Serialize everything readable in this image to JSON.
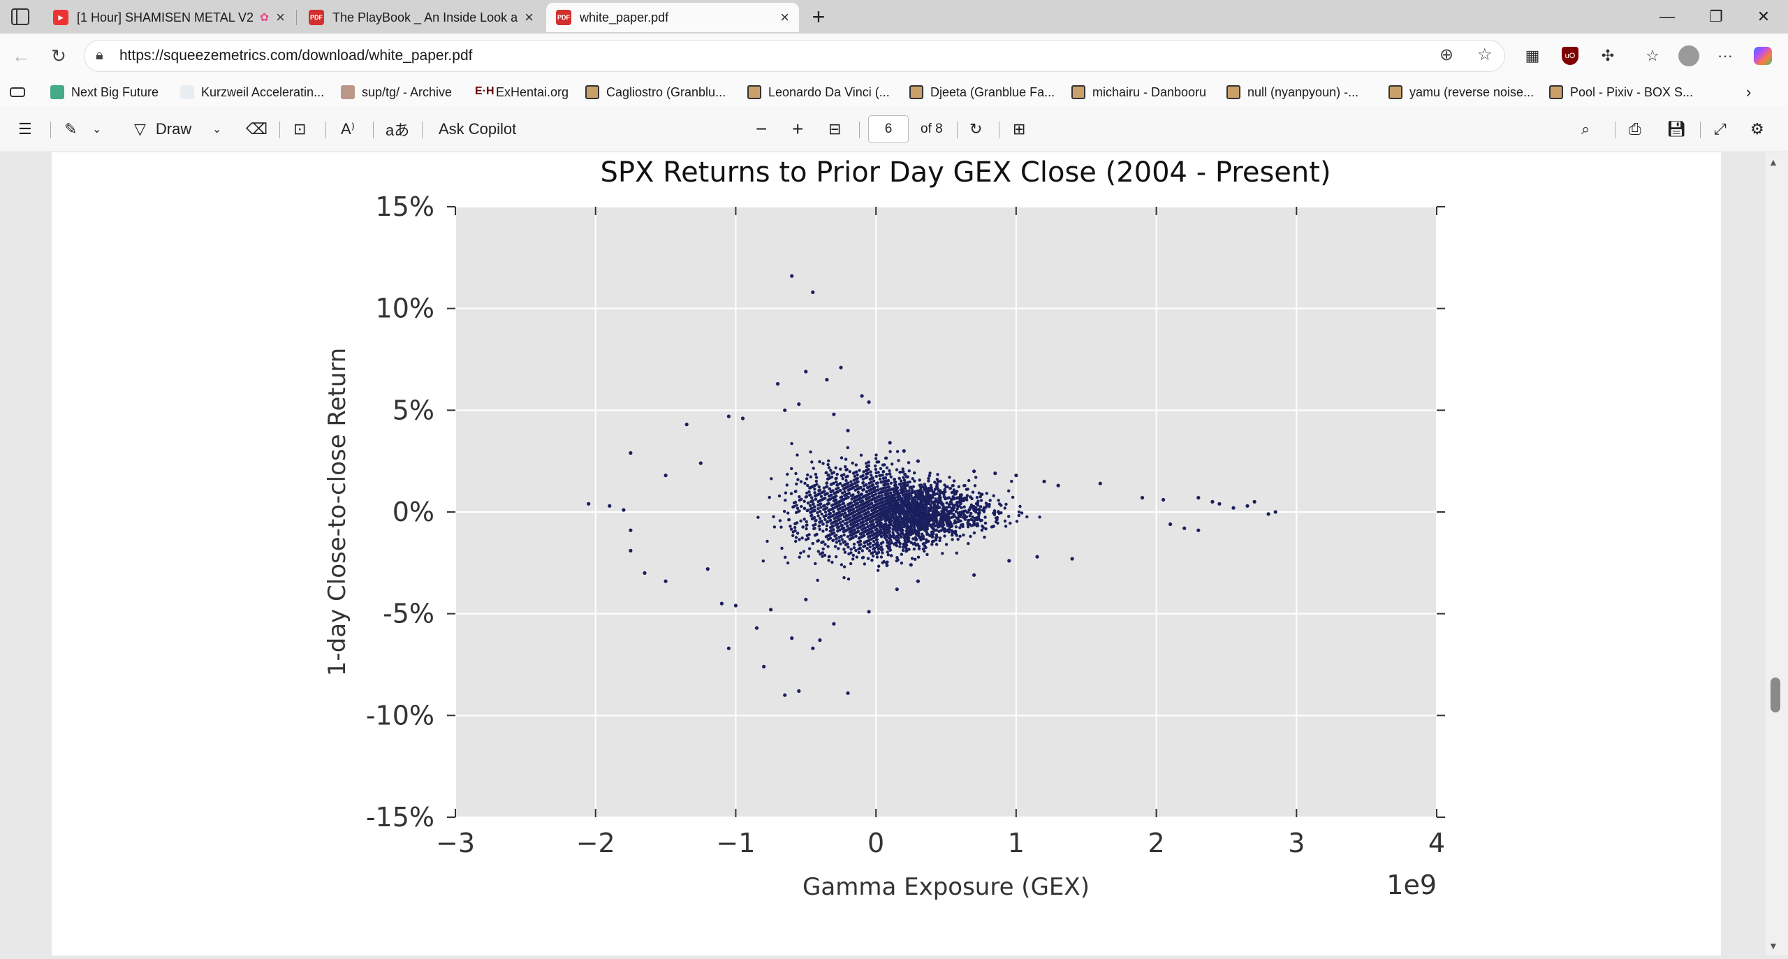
{
  "browser": {
    "tabs": [
      {
        "title": "[1 Hour] SHAMISEN METAL V2",
        "favicon": "youtube-icon",
        "active": false
      },
      {
        "title": "The PlayBook _ An Inside Look at",
        "favicon": "pdf-icon",
        "active": false
      },
      {
        "title": "white_paper.pdf",
        "favicon": "pdf-icon",
        "active": true
      }
    ],
    "new_tab_label": "+",
    "url": "https://squeezemetrics.com/download/white_paper.pdf"
  },
  "bookmarks": [
    {
      "label": "Next Big Future",
      "icon": "nbf-icon"
    },
    {
      "label": "Kurzweil Acceleratin...",
      "icon": "page-icon"
    },
    {
      "label": "sup/tg/ - Archive",
      "icon": "archive-icon"
    },
    {
      "label": "ExHentai.org",
      "icon": "eh-icon"
    },
    {
      "label": "Cagliostro (Granblu...",
      "icon": "folder-icon"
    },
    {
      "label": "Leonardo Da Vinci (...",
      "icon": "folder-icon"
    },
    {
      "label": "Djeeta (Granblue Fa...",
      "icon": "folder-icon"
    },
    {
      "label": "michairu - Danbooru",
      "icon": "folder-icon"
    },
    {
      "label": "null (nyanpyoun) -...",
      "icon": "folder-icon"
    },
    {
      "label": "yamu (reverse noise...",
      "icon": "folder-icon"
    },
    {
      "label": "Pool - Pixiv - BOX S...",
      "icon": "folder-icon"
    }
  ],
  "pdf_toolbar": {
    "draw_label": "Draw",
    "ask_copilot_label": "Ask Copilot",
    "current_page": "6",
    "page_count_label": "of 8"
  },
  "chart_data": {
    "type": "scatter",
    "title": "SPX Returns to Prior Day GEX Close (2004 - Present)",
    "xlabel": "Gamma Exposure (GEX)",
    "ylabel": "1-day Close-to-close Return",
    "x_offset_label": "1e9",
    "xlim": [
      -3,
      4
    ],
    "ylim": [
      -15,
      15
    ],
    "x_ticks": [
      -3,
      -2,
      -1,
      0,
      1,
      2,
      3,
      4
    ],
    "x_tick_labels": [
      "−3",
      "−2",
      "−1",
      "0",
      "1",
      "2",
      "3",
      "4"
    ],
    "y_ticks": [
      15,
      10,
      5,
      0,
      -5,
      -10,
      -15
    ],
    "y_tick_labels": [
      "15%",
      "10%",
      "5%",
      "0%",
      "-5%",
      "-10%",
      "-15%"
    ],
    "grid": true,
    "marker_color": "#1a1f5e",
    "background_color": "#e5e5e5",
    "points": [
      [
        -0.6,
        11.6
      ],
      [
        -0.45,
        10.8
      ],
      [
        -0.25,
        7.1
      ],
      [
        -0.5,
        6.9
      ],
      [
        -0.7,
        6.3
      ],
      [
        -0.35,
        6.5
      ],
      [
        -0.55,
        5.3
      ],
      [
        -0.1,
        5.7
      ],
      [
        -0.05,
        5.4
      ],
      [
        -0.65,
        5.0
      ],
      [
        -1.05,
        4.7
      ],
      [
        -0.95,
        4.6
      ],
      [
        -1.35,
        4.3
      ],
      [
        -0.3,
        4.8
      ],
      [
        -1.75,
        2.9
      ],
      [
        -1.5,
        1.8
      ],
      [
        -1.25,
        2.4
      ],
      [
        -2.05,
        0.4
      ],
      [
        -1.9,
        0.3
      ],
      [
        -1.8,
        0.1
      ],
      [
        -1.75,
        -0.9
      ],
      [
        -1.75,
        -1.9
      ],
      [
        -1.65,
        -3.0
      ],
      [
        -1.5,
        -3.4
      ],
      [
        -1.2,
        -2.8
      ],
      [
        -1.1,
        -4.5
      ],
      [
        -1.0,
        -4.6
      ],
      [
        -1.05,
        -6.7
      ],
      [
        -0.85,
        -5.7
      ],
      [
        -0.8,
        -7.6
      ],
      [
        -0.65,
        -9.0
      ],
      [
        -0.55,
        -8.8
      ],
      [
        -0.2,
        -8.9
      ],
      [
        -0.45,
        -6.7
      ],
      [
        -0.4,
        -6.3
      ],
      [
        -0.6,
        -6.2
      ],
      [
        -0.3,
        -5.5
      ],
      [
        -0.05,
        -4.9
      ],
      [
        -0.75,
        -4.8
      ],
      [
        -0.5,
        -4.3
      ],
      [
        0.15,
        -3.8
      ],
      [
        0.3,
        -3.4
      ],
      [
        0.7,
        -3.1
      ],
      [
        0.25,
        -2.6
      ],
      [
        0.95,
        -2.4
      ],
      [
        1.4,
        -2.3
      ],
      [
        1.15,
        -2.2
      ],
      [
        2.2,
        -0.8
      ],
      [
        2.3,
        -0.9
      ],
      [
        2.1,
        -0.6
      ],
      [
        1.9,
        0.7
      ],
      [
        2.05,
        0.6
      ],
      [
        2.3,
        0.7
      ],
      [
        2.4,
        0.5
      ],
      [
        2.45,
        0.4
      ],
      [
        2.65,
        0.3
      ],
      [
        2.7,
        0.5
      ],
      [
        2.85,
        0.0
      ],
      [
        2.8,
        -0.1
      ],
      [
        2.55,
        0.2
      ],
      [
        1.6,
        1.4
      ],
      [
        1.3,
        1.3
      ],
      [
        1.2,
        1.5
      ],
      [
        1.0,
        1.8
      ],
      [
        0.7,
        2.0
      ],
      [
        0.85,
        1.9
      ],
      [
        0.3,
        2.5
      ],
      [
        0.2,
        3.0
      ],
      [
        0.1,
        3.4
      ],
      [
        -0.2,
        4.0
      ]
    ]
  }
}
